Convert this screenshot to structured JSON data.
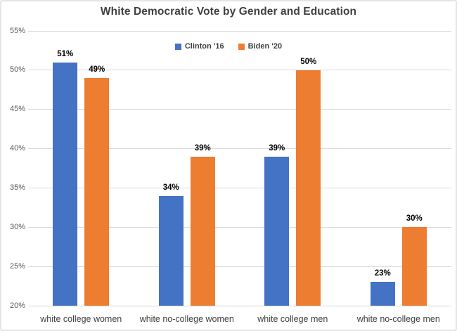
{
  "chart_data": {
    "type": "bar",
    "title": "White Democratic Vote by Gender and Education",
    "categories": [
      "white college women",
      "white no-college women",
      "white college men",
      "white no-college men"
    ],
    "series": [
      {
        "name": "Clinton '16",
        "color": "#4472C4",
        "values": [
          51,
          34,
          39,
          23
        ]
      },
      {
        "name": "Biden '20",
        "color": "#ED7D31",
        "values": [
          49,
          39,
          50,
          30
        ]
      }
    ],
    "value_suffix": "%",
    "ylim": [
      20,
      55
    ],
    "yticks": [
      20,
      25,
      30,
      35,
      40,
      45,
      50,
      55
    ],
    "grid": "horizontal",
    "legend_position": "top-center",
    "xlabel": "",
    "ylabel": ""
  },
  "colors": {
    "background": "#ffffff",
    "border": "#e4e4e4",
    "gridline": "#d9d9d9",
    "title_text": "#404040",
    "axis_tick_text": "#595959",
    "category_text": "#404040",
    "data_label_text": "#000000",
    "series_blue": "#4472C4",
    "series_orange": "#ED7D31"
  }
}
